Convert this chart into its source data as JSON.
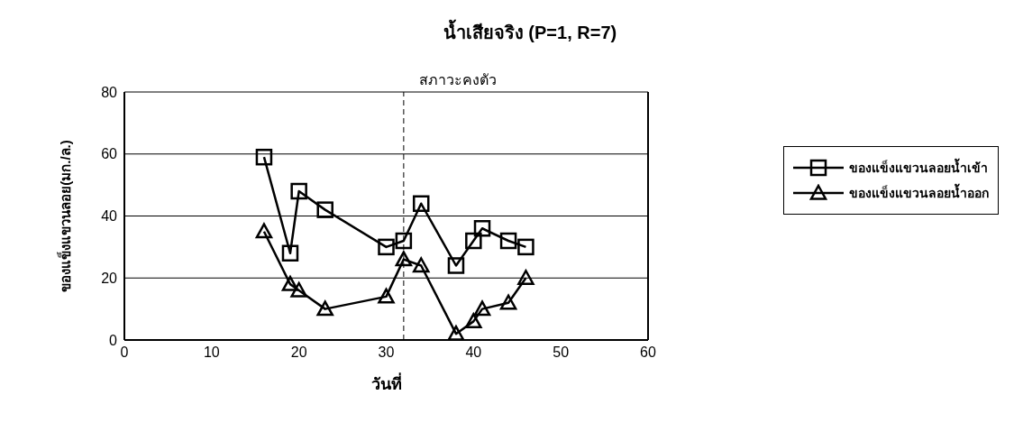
{
  "chart_data": {
    "type": "line",
    "title": "น้ำเสียจริง (P=1, R=7)",
    "xlabel": "วันที่",
    "ylabel": "ของแข็งแขวนลอย(มก./ล.)",
    "x": [
      16,
      19,
      20,
      23,
      30,
      32,
      34,
      38,
      40,
      41,
      44,
      46
    ],
    "series": [
      {
        "name": "ของแข็งแขวนลอยน้ำเข้า",
        "color": "#000000",
        "marker": "square",
        "values": [
          59,
          28,
          48,
          42,
          30,
          32,
          44,
          24,
          32,
          36,
          32,
          30
        ]
      },
      {
        "name": "ของแข็งแขวนลอยน้ำออก",
        "color": "#000000",
        "marker": "triangle",
        "values": [
          35,
          18,
          16,
          10,
          14,
          26,
          24,
          2,
          6,
          10,
          12,
          20
        ]
      }
    ],
    "xlim": [
      0,
      60
    ],
    "xticks": [
      0,
      10,
      20,
      30,
      40,
      50,
      60
    ],
    "ylim": [
      0,
      80
    ],
    "yticks": [
      0,
      20,
      40,
      60,
      80
    ],
    "grid": "y",
    "legend": "right",
    "line_style": "solid",
    "ref_lines": [
      {
        "axis": "x",
        "value": 32,
        "label": "สภาวะคงตัว",
        "line_style": "dashed"
      }
    ]
  }
}
